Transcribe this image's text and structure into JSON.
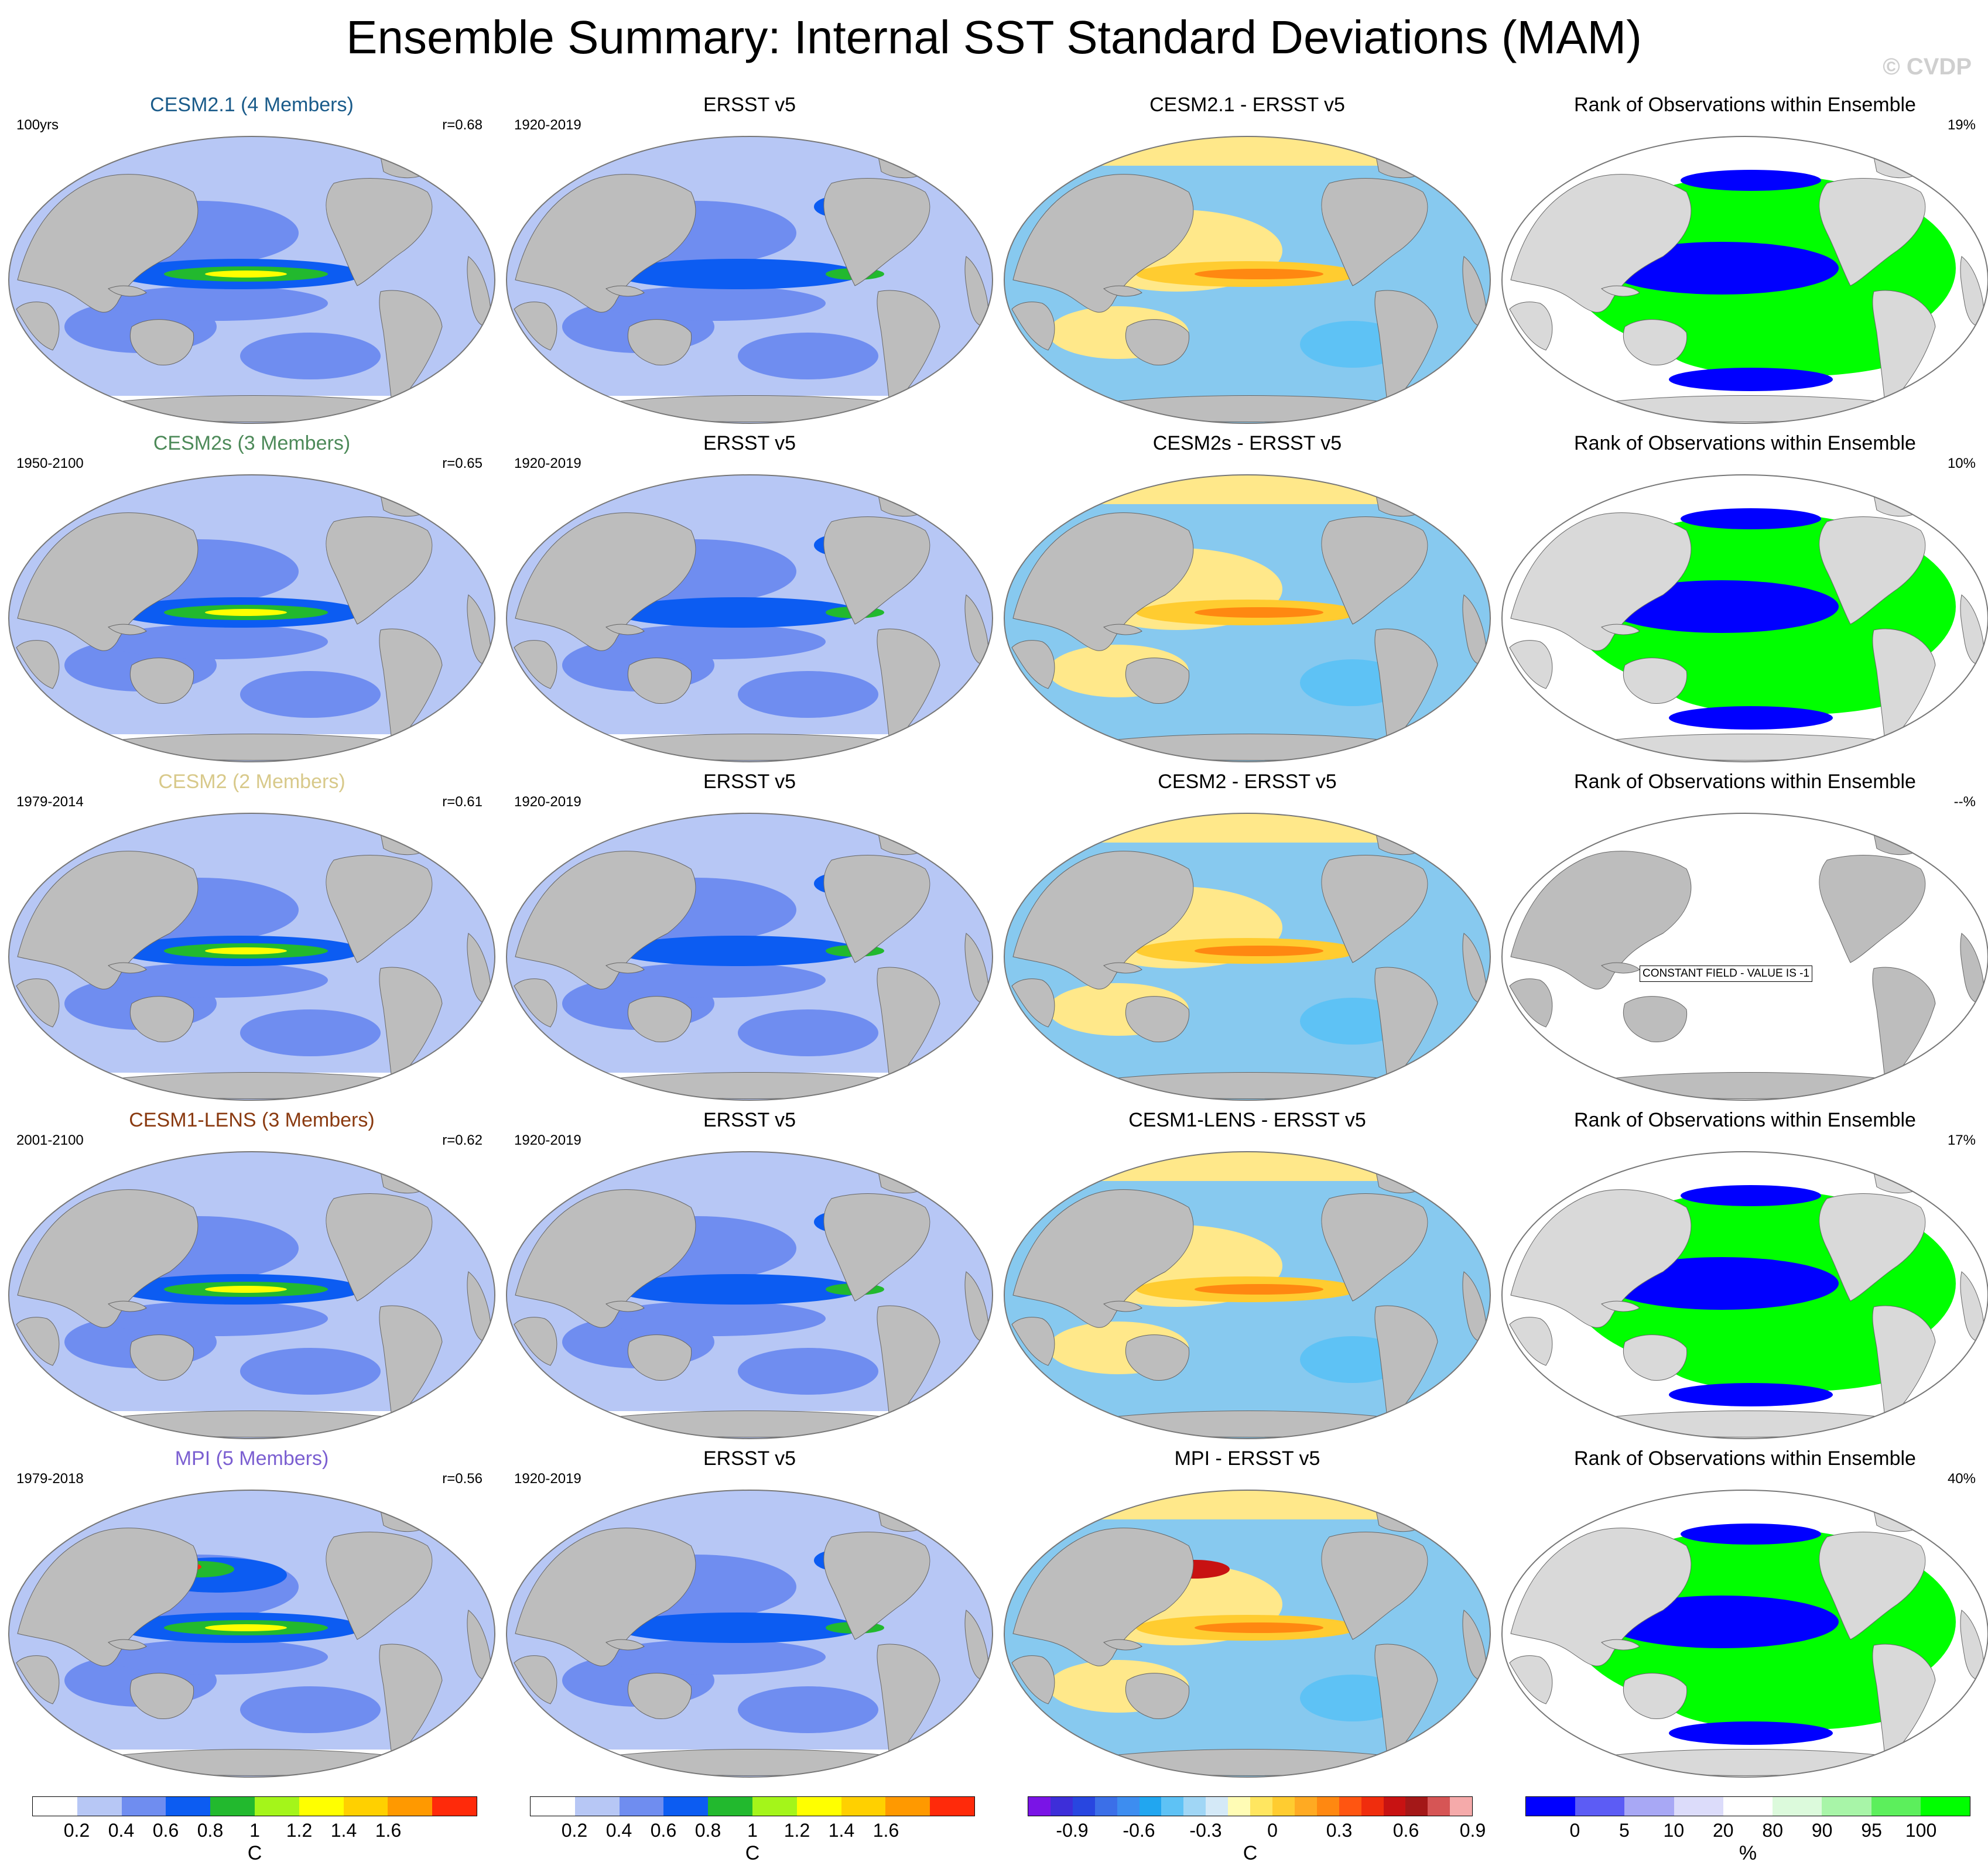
{
  "title": "Ensemble Summary: Internal SST Standard Deviations (MAM)",
  "watermark": "© CVDP",
  "colors": {
    "land": "#bdbdbd",
    "ocean_base": "#b7c7f5",
    "ocean_mid": "#6f8df0",
    "ocean_strong": "#0c5cf2",
    "green": "#22b92e",
    "yellow": "#ffff00",
    "red": "#ff2a0a",
    "rank_blue": "#0000ff",
    "rank_green": "#00ff00",
    "diff_neg": "#87c9ef",
    "diff_pos": "#ffe88a"
  },
  "rows": [
    {
      "model": "CESM2.1 (4 Members)",
      "model_color": "#1a5b8a",
      "model_period": "100yrs",
      "corr": "r=0.68",
      "obs_title": "ERSST v5",
      "obs_period": "1920-2019",
      "diff_title": "CESM2.1 - ERSST v5",
      "rank_title": "Rank of Observations within Ensemble",
      "rank_pct": "19%",
      "rank_constant": false
    },
    {
      "model": "CESM2s (3 Members)",
      "model_color": "#4d8a59",
      "model_period": "1950-2100",
      "corr": "r=0.65",
      "obs_title": "ERSST v5",
      "obs_period": "1920-2019",
      "diff_title": "CESM2s - ERSST v5",
      "rank_title": "Rank of Observations within Ensemble",
      "rank_pct": "10%",
      "rank_constant": false
    },
    {
      "model": "CESM2 (2 Members)",
      "model_color": "#d8c98a",
      "model_period": "1979-2014",
      "corr": "r=0.61",
      "obs_title": "ERSST v5",
      "obs_period": "1920-2019",
      "diff_title": "CESM2 - ERSST v5",
      "rank_title": "Rank of Observations within Ensemble",
      "rank_pct": "--%",
      "rank_constant": true,
      "constant_text": "CONSTANT FIELD - VALUE IS -1"
    },
    {
      "model": "CESM1-LENS (3 Members)",
      "model_color": "#8a3a10",
      "model_period": "2001-2100",
      "corr": "r=0.62",
      "obs_title": "ERSST v5",
      "obs_period": "1920-2019",
      "diff_title": "CESM1-LENS - ERSST v5",
      "rank_title": "Rank of Observations within Ensemble",
      "rank_pct": "17%",
      "rank_constant": false
    },
    {
      "model": "MPI (5 Members)",
      "model_color": "#7b5fd1",
      "model_period": "1979-2018",
      "corr": "r=0.56",
      "obs_title": "ERSST v5",
      "obs_period": "1920-2019",
      "diff_title": "MPI - ERSST v5",
      "rank_title": "Rank of Observations within Ensemble",
      "rank_pct": "40%",
      "rank_constant": false
    }
  ],
  "colorbars": [
    {
      "unit": "C",
      "colors": [
        "#ffffff",
        "#b7c7f5",
        "#6f8df0",
        "#0c5cf2",
        "#22b92e",
        "#a4f51a",
        "#ffff00",
        "#ffd000",
        "#ff9900",
        "#ff2a0a"
      ],
      "labels": [
        "0.2",
        "0.4",
        "0.6",
        "0.8",
        "1",
        "1.2",
        "1.4",
        "1.6"
      ]
    },
    {
      "unit": "C",
      "colors": [
        "#ffffff",
        "#b7c7f5",
        "#6f8df0",
        "#0c5cf2",
        "#22b92e",
        "#a4f51a",
        "#ffff00",
        "#ffd000",
        "#ff9900",
        "#ff2a0a"
      ],
      "labels": [
        "0.2",
        "0.4",
        "0.6",
        "0.8",
        "1",
        "1.2",
        "1.4",
        "1.6"
      ]
    },
    {
      "unit": "C",
      "colors": [
        "#7a14e6",
        "#3d2ed9",
        "#2846e0",
        "#3b6fe8",
        "#3d8df0",
        "#21a6f0",
        "#5ec2f5",
        "#a0d6f5",
        "#d4e9f7",
        "#fffcb5",
        "#ffe660",
        "#ffcc30",
        "#ffaa22",
        "#ff8811",
        "#ff5511",
        "#f02d0d",
        "#c81212",
        "#a41818",
        "#d65555",
        "#f5aaaa"
      ],
      "labels": [
        "-0.9",
        "-0.6",
        "-0.3",
        "0",
        "0.3",
        "0.6",
        "0.9"
      ]
    },
    {
      "unit": "%",
      "colors": [
        "#0000ff",
        "#5c5cf5",
        "#a8a8f5",
        "#dcdcfa",
        "#ffffff",
        "#dcfadc",
        "#a8f5a8",
        "#5cef5c",
        "#00ff00"
      ],
      "labels": [
        "0",
        "5",
        "10",
        "20",
        "80",
        "90",
        "95",
        "100"
      ]
    }
  ]
}
